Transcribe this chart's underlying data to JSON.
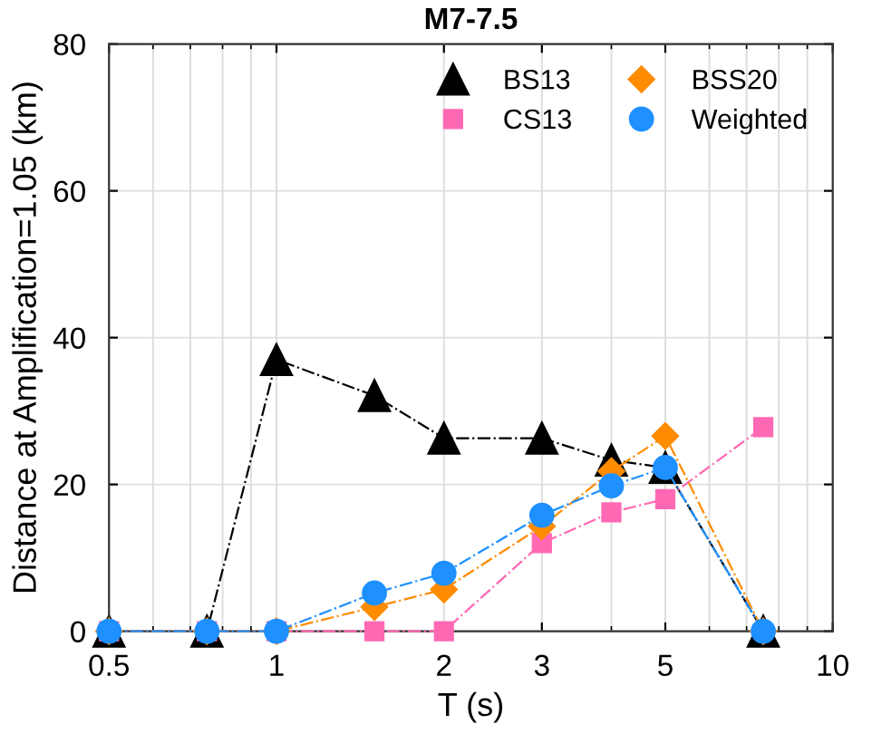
{
  "chart_data": {
    "type": "line",
    "title": "M7-7.5",
    "xlabel": "T (s)",
    "ylabel": "Distance at Amplification=1.05 (km)",
    "x": [
      0.5,
      0.75,
      1,
      1.5,
      2,
      3,
      4,
      5,
      7.5
    ],
    "series": [
      {
        "name": "BS13",
        "color": "#000000",
        "marker": "triangle",
        "values": [
          0,
          0,
          37,
          32.1,
          26.3,
          26.3,
          23.3,
          22.3,
          0
        ]
      },
      {
        "name": "CS13",
        "color": "#ff69b4",
        "marker": "square",
        "values": [
          0,
          0,
          0,
          0,
          0,
          12,
          16.2,
          18,
          27.8
        ]
      },
      {
        "name": "BSS20",
        "color": "#ff8c00",
        "marker": "diamond",
        "values": [
          0,
          0,
          0,
          3.3,
          5.7,
          14.3,
          21.8,
          26.6,
          0
        ]
      },
      {
        "name": "Weighted",
        "color": "#1e90ff",
        "marker": "circle",
        "values": [
          0,
          0,
          0,
          5.2,
          7.9,
          15.8,
          19.8,
          22.3,
          0
        ]
      }
    ],
    "log": "x",
    "xlim": [
      0.5,
      10
    ],
    "xticks": [
      0.5,
      1,
      2,
      3,
      5,
      10
    ],
    "ylim": [
      0,
      80
    ],
    "yticks": [
      0,
      20,
      40,
      60,
      80
    ],
    "grid": true,
    "legend": "top right",
    "line_style": "dashed"
  }
}
